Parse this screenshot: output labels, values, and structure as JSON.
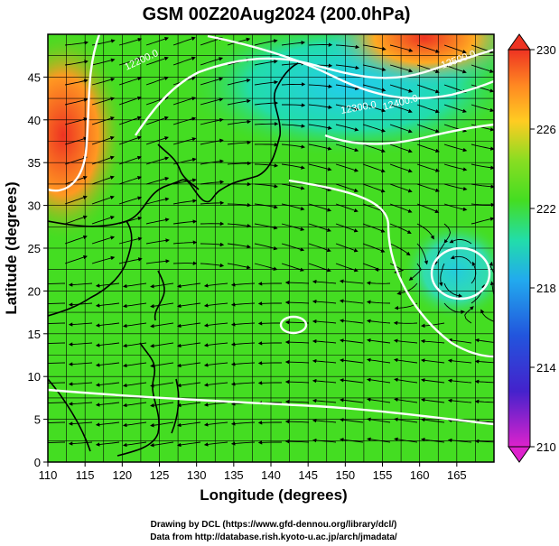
{
  "chart_data": {
    "type": "heatmap",
    "title": "GSM 00Z20Aug2024 (200.0hPa)",
    "xlabel": "Longitude (degrees)",
    "ylabel": "Latitude  (degrees)",
    "xlim": [
      110,
      170
    ],
    "ylim": [
      0,
      50
    ],
    "x_ticks": [
      "110",
      "115",
      "120",
      "125",
      "130",
      "135",
      "140",
      "145",
      "150",
      "155",
      "160",
      "165"
    ],
    "y_ticks": [
      "0",
      "5",
      "10",
      "15",
      "20",
      "25",
      "30",
      "35",
      "40",
      "45"
    ],
    "grid": true,
    "colorbar": {
      "position": "right",
      "min": 210,
      "max": 230,
      "ticks": [
        "210",
        "214",
        "218",
        "222",
        "226",
        "230"
      ],
      "colors": [
        "#dd22cc",
        "#2222cc",
        "#22ccee",
        "#44dd22",
        "#aadd22",
        "#ff8800",
        "#ee3322"
      ]
    },
    "contour_labels": [
      "12300.0",
      "12400.0",
      "12500.0",
      "12200.0"
    ],
    "fields": [
      "temperature (shaded)",
      "wind streamlines",
      "geopotential height contours"
    ]
  },
  "credits": {
    "line1": "Drawing by DCL (https://www.gfd-dennou.org/library/dcl/)",
    "line2": "Data from http://database.rish.kyoto-u.ac.jp/arch/jmadata/"
  }
}
